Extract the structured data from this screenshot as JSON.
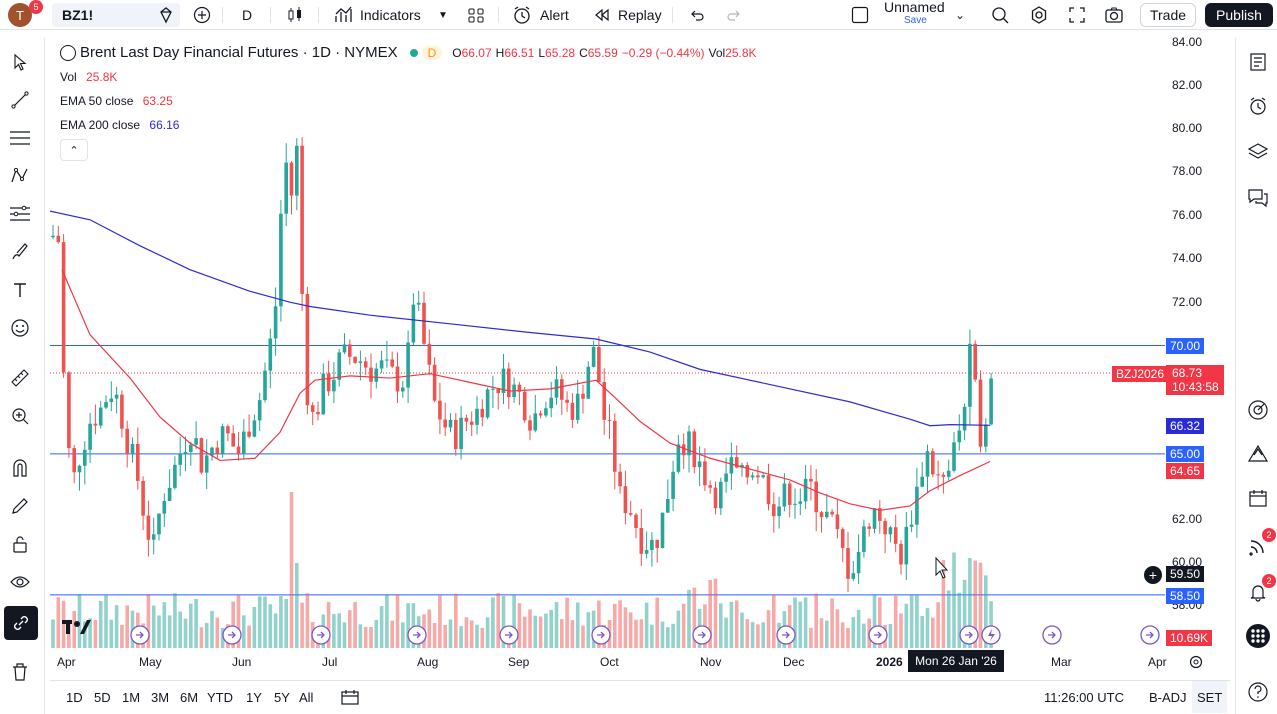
{
  "toolbar": {
    "avatar_letter": "T",
    "avatar_badge": "5",
    "symbol": "BZ1!",
    "interval": "D",
    "indicators_label": "Indicators",
    "alert_label": "Alert",
    "replay_label": "Replay",
    "layout_name": "Unnamed",
    "layout_sub": "Save",
    "trade_label": "Trade",
    "publish_label": "Publish"
  },
  "legend": {
    "title": "Brent Last Day Financial Futures · 1D · NYMEX",
    "delay_badge": "D",
    "o_label": "O",
    "o_value": "66.07",
    "h_label": "H",
    "h_value": "66.51",
    "l_label": "L",
    "l_value": "65.28",
    "c_label": "C",
    "c_value": "65.59",
    "change": "−0.29 (−0.44%)",
    "vol_label": "Vol",
    "vol_value": "25.8K",
    "vol_row_label": "Vol",
    "vol_row_value": "25.8K",
    "ema50_label": "EMA 50 close",
    "ema50_value": "63.25",
    "ema200_label": "EMA 200 close",
    "ema200_value": "66.16"
  },
  "price_axis": [
    "84.00",
    "82.00",
    "80.00",
    "78.00",
    "76.00",
    "74.00",
    "72.00",
    "62.00",
    "60.00",
    "58.00"
  ],
  "price_labels": {
    "line_top": "70.00",
    "contract": "BZJ2026",
    "last_price": "68.73",
    "countdown": "10:43:58",
    "ema200": "66.32",
    "line_mid": "65.00",
    "ema50": "64.65",
    "crosshair": "59.50",
    "line_low": "58.50",
    "volume": "10.69K"
  },
  "time_axis": [
    "Apr",
    "May",
    "Jun",
    "Jul",
    "Aug",
    "Sep",
    "Oct",
    "Nov",
    "Dec",
    "2026",
    "Mar",
    "Apr"
  ],
  "crosshair_date": "Mon 26 Jan '26",
  "bottom": {
    "ranges": [
      "1D",
      "5D",
      "1M",
      "3M",
      "6M",
      "YTD",
      "1Y",
      "5Y",
      "All"
    ],
    "clock": "11:26:00 UTC",
    "adj": "B-ADJ",
    "session": "SET"
  },
  "right_badges": {
    "signals": "2",
    "alerts": "2"
  },
  "colors": {
    "up": "#26a69a",
    "down": "#ef5350",
    "ema50": "#f23645",
    "ema200": "#2b2bd6",
    "hline": "#2962ff",
    "accent": "#2962ff"
  },
  "chart_data": {
    "type": "candlestick",
    "x": [
      "Apr",
      "May",
      "Jun",
      "Jul",
      "Aug",
      "Sep",
      "Oct",
      "Nov",
      "Dec",
      "2026",
      "Mar"
    ],
    "series": [
      {
        "name": "EMA 50 close",
        "values": [
          74,
          66.5,
          64.8,
          67.5,
          69.3,
          68.5,
          66,
          64.5,
          63.5,
          62.5,
          64.65
        ]
      },
      {
        "name": "EMA 200 close",
        "values": [
          76.2,
          74.5,
          73,
          72,
          71.3,
          70.9,
          70.2,
          68.8,
          67.5,
          66.3,
          66.32
        ]
      }
    ],
    "ylim": [
      57,
      84.5
    ],
    "hlines": [
      70.0,
      65.0,
      58.5
    ]
  }
}
